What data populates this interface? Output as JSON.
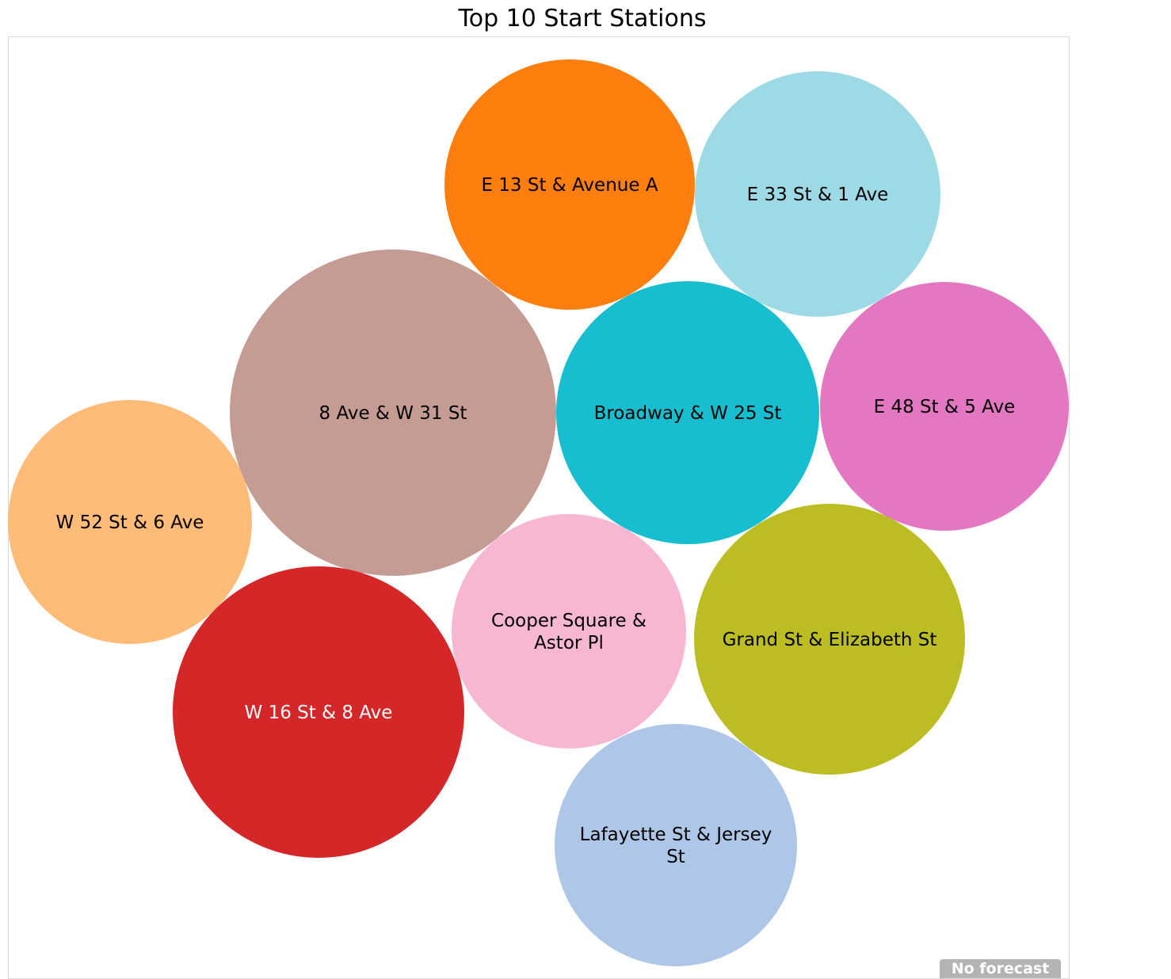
{
  "chart_data": {
    "type": "bubble",
    "title": "Top 10 Start Stations",
    "legend": "none",
    "bubbles": [
      {
        "label": "E 13 St & Avenue A",
        "color": "#ff7f0e",
        "text_color": "#000000"
      },
      {
        "label": "E 33 St & 1 Ave",
        "color": "#9edae5",
        "text_color": "#000000"
      },
      {
        "label": "8 Ave & W 31 St",
        "color": "#c49c94",
        "text_color": "#000000"
      },
      {
        "label": "Broadway & W 25 St",
        "color": "#17becf",
        "text_color": "#000000"
      },
      {
        "label": "E 48 St & 5 Ave",
        "color": "#e377c2",
        "text_color": "#000000"
      },
      {
        "label": "W 52 St & 6 Ave",
        "color": "#ffbb78",
        "text_color": "#000000"
      },
      {
        "label": "Cooper Square & Astor Pl",
        "color": "#f7b6d2",
        "text_color": "#000000"
      },
      {
        "label": "Grand St & Elizabeth St",
        "color": "#bcbd22",
        "text_color": "#000000"
      },
      {
        "label": "W 16 St & 8 Ave",
        "color": "#d62728",
        "text_color": "#ffffff"
      },
      {
        "label": "Lafayette St & Jersey St",
        "color": "#aec7e8",
        "text_color": "#000000"
      }
    ]
  },
  "badge": {
    "label": "No forecast"
  }
}
